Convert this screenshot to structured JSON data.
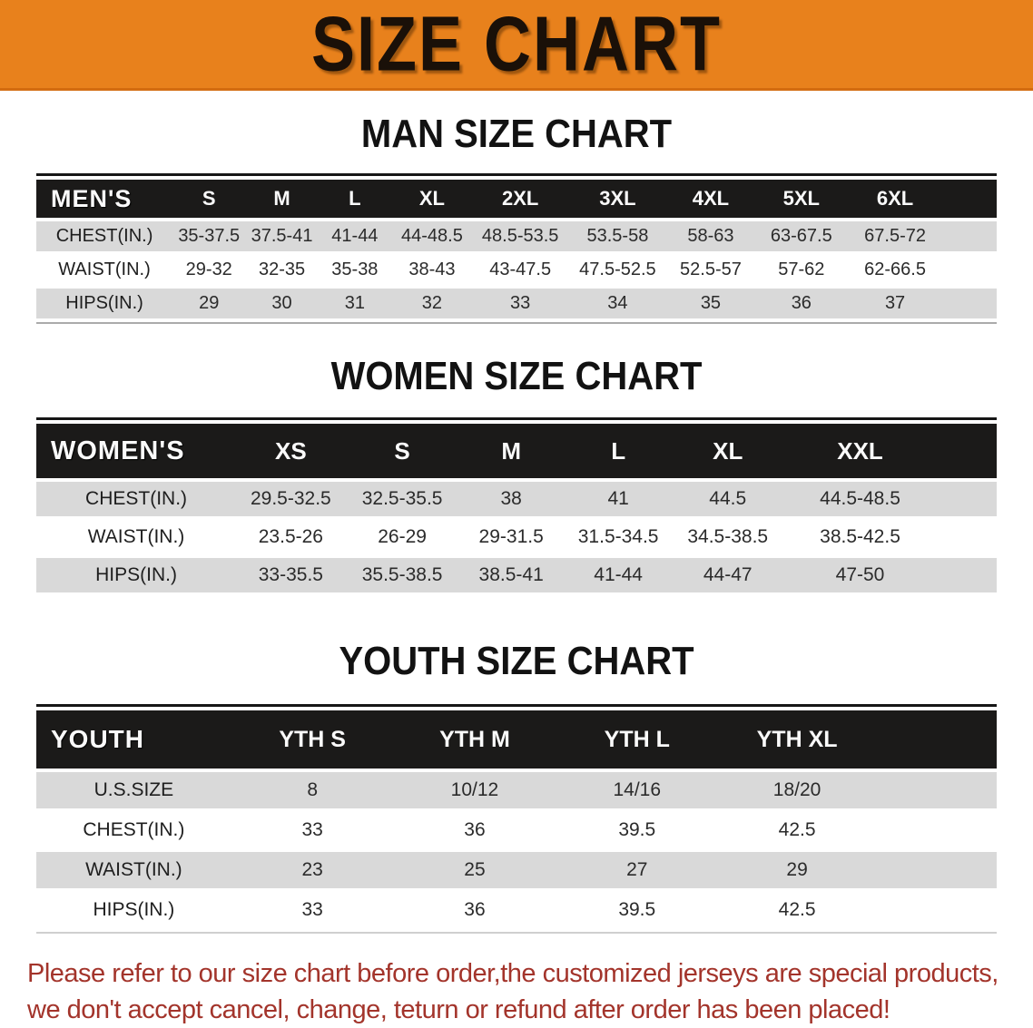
{
  "banner": {
    "title": "SIZE CHART",
    "bg_color": "#E8811C",
    "text_color": "#1A1008"
  },
  "sections": [
    {
      "heading": "MAN SIZE CHART",
      "label": "MEN'S",
      "columns": [
        "S",
        "M",
        "L",
        "XL",
        "2XL",
        "3XL",
        "4XL",
        "5XL",
        "6XL"
      ],
      "rows": [
        {
          "label": "CHEST(IN.)",
          "values": [
            "35-37.5",
            "37.5-41",
            "41-44",
            "44-48.5",
            "48.5-53.5",
            "53.5-58",
            "58-63",
            "63-67.5",
            "67.5-72"
          ]
        },
        {
          "label": "WAIST(IN.)",
          "values": [
            "29-32",
            "32-35",
            "35-38",
            "38-43",
            "43-47.5",
            "47.5-52.5",
            "52.5-57",
            "57-62",
            "62-66.5"
          ]
        },
        {
          "label": "HIPS(IN.)",
          "values": [
            "29",
            "30",
            "31",
            "32",
            "33",
            "34",
            "35",
            "36",
            "37"
          ]
        }
      ]
    },
    {
      "heading": "WOMEN SIZE CHART",
      "label": "WOMEN'S",
      "columns": [
        "XS",
        "S",
        "M",
        "L",
        "XL",
        "XXL"
      ],
      "rows": [
        {
          "label": "CHEST(IN.)",
          "values": [
            "29.5-32.5",
            "32.5-35.5",
            "38",
            "41",
            "44.5",
            "44.5-48.5"
          ]
        },
        {
          "label": "WAIST(IN.)",
          "values": [
            "23.5-26",
            "26-29",
            "29-31.5",
            "31.5-34.5",
            "34.5-38.5",
            "38.5-42.5"
          ]
        },
        {
          "label": "HIPS(IN.)",
          "values": [
            "33-35.5",
            "35.5-38.5",
            "38.5-41",
            "41-44",
            "44-47",
            "47-50"
          ]
        }
      ]
    },
    {
      "heading": "YOUTH SIZE CHART",
      "label": "YOUTH",
      "columns": [
        "YTH S",
        "YTH M",
        "YTH L",
        "YTH XL"
      ],
      "rows": [
        {
          "label": "U.S.SIZE",
          "values": [
            "8",
            "10/12",
            "14/16",
            "18/20"
          ]
        },
        {
          "label": "CHEST(IN.)",
          "values": [
            "33",
            "36",
            "39.5",
            "42.5"
          ]
        },
        {
          "label": "WAIST(IN.)",
          "values": [
            "23",
            "25",
            "27",
            "29"
          ]
        },
        {
          "label": "HIPS(IN.)",
          "values": [
            "33",
            "36",
            "39.5",
            "42.5"
          ]
        }
      ]
    }
  ],
  "footer": {
    "line1": "Please refer to our size chart before order,the customized jerseys are special products,",
    "line2": "we don't accept cancel, change, teturn or refund after order has been placed!",
    "text_color": "#A3342B"
  },
  "colors": {
    "banner_orange": "#E8811C",
    "header_bar_black": "#1B1A19",
    "row_gray": "#D9D9D9",
    "disclaimer_red": "#A3342B"
  }
}
